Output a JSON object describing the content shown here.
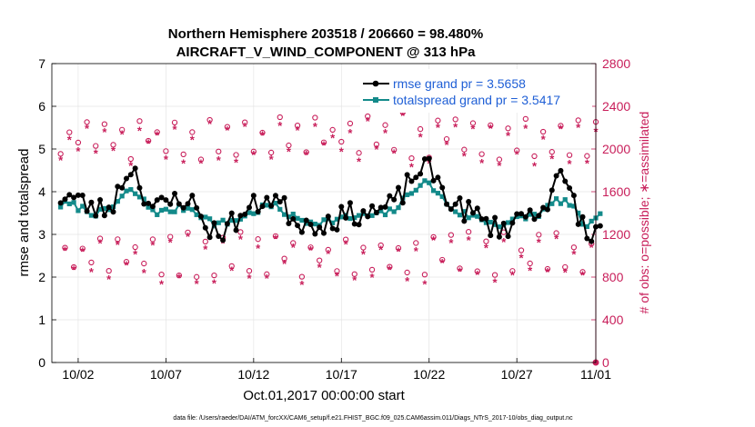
{
  "chart_data": {
    "type": "line",
    "title_line1": "Northern Hemisphere 203518 / 206660 = 98.480%",
    "title_line2": "AIRCRAFT_V_WIND_COMPONENT @ 313 hPa",
    "xlabel": "Oct.01,2017 00:00:00 start",
    "ylabel_left": "rmse and totalspread",
    "ylabel_right": "# of obs: o=possible; ∗=assimilated",
    "xlim": [
      0.5,
      31.5
    ],
    "ylim_left": [
      0,
      7
    ],
    "ylim_right": [
      0,
      2800
    ],
    "x_ticks": [
      {
        "value": 2,
        "label": "10/02"
      },
      {
        "value": 7,
        "label": "10/07"
      },
      {
        "value": 12,
        "label": "10/12"
      },
      {
        "value": 17,
        "label": "10/17"
      },
      {
        "value": 22,
        "label": "10/22"
      },
      {
        "value": 27,
        "label": "10/27"
      },
      {
        "value": 32,
        "label": "11/01"
      }
    ],
    "y_ticks_left": [
      "0",
      "1",
      "2",
      "3",
      "4",
      "5",
      "6",
      "7"
    ],
    "y_ticks_right": [
      "0",
      "400",
      "800",
      "1200",
      "1600",
      "2000",
      "2400",
      "2800"
    ],
    "grid": true,
    "legend_position": "top-right",
    "colors": {
      "rmse": "#000000",
      "spread": "#138a8a",
      "obs": "#c81e5a",
      "legend_text": "#1f5fd6"
    },
    "series": [
      {
        "name": "rmse",
        "legend": "rmse grand pr = 3.5658",
        "base": 3.55,
        "noise": 0.28,
        "bumps": [
          [
            1.3,
            0.35,
            1.2
          ],
          [
            5.0,
            1.0,
            0.8
          ],
          [
            8.3,
            0.5,
            1.2
          ],
          [
            9.6,
            -0.6,
            1.4
          ],
          [
            13.0,
            0.4,
            1.0
          ],
          [
            15.3,
            -0.3,
            2.0
          ],
          [
            21.7,
            1.0,
            1.3
          ],
          [
            26.0,
            -0.4,
            1.2
          ],
          [
            29.5,
            0.7,
            0.8
          ],
          [
            31.2,
            -0.7,
            0.6
          ]
        ]
      },
      {
        "name": "totalspread",
        "legend": "totalspread grand pr = 3.5417",
        "base": 3.45,
        "noise": 0.09,
        "bumps": [
          [
            1.3,
            0.25,
            1.3
          ],
          [
            5.0,
            0.55,
            1.0
          ],
          [
            8.5,
            0.3,
            1.3
          ],
          [
            9.6,
            -0.3,
            1.4
          ],
          [
            13.0,
            0.25,
            1.0
          ],
          [
            15.5,
            -0.15,
            2.0
          ],
          [
            21.7,
            0.75,
            1.3
          ],
          [
            26.0,
            -0.2,
            1.2
          ],
          [
            29.5,
            0.35,
            0.9
          ],
          [
            31.0,
            -0.25,
            0.6
          ]
        ]
      },
      {
        "name": "obs_possible",
        "legend": "o = possible",
        "description": "6-hourly observation counts, diurnal cycle between ~900 and ~2300"
      },
      {
        "name": "obs_assimilated",
        "legend": "∗ = assimilated",
        "description": "slightly below possible counts"
      }
    ],
    "obs_cycle_values": [
      2000,
      1150,
      2250,
      880
    ],
    "footnote": "data file: /Users/raeder/DAI/ATM_forcXX/CAM6_setup/f.e21.FHIST_BGC.f09_025.CAM6assim.011/Diags_NTrS_2017-10/obs_diag_output.nc"
  }
}
